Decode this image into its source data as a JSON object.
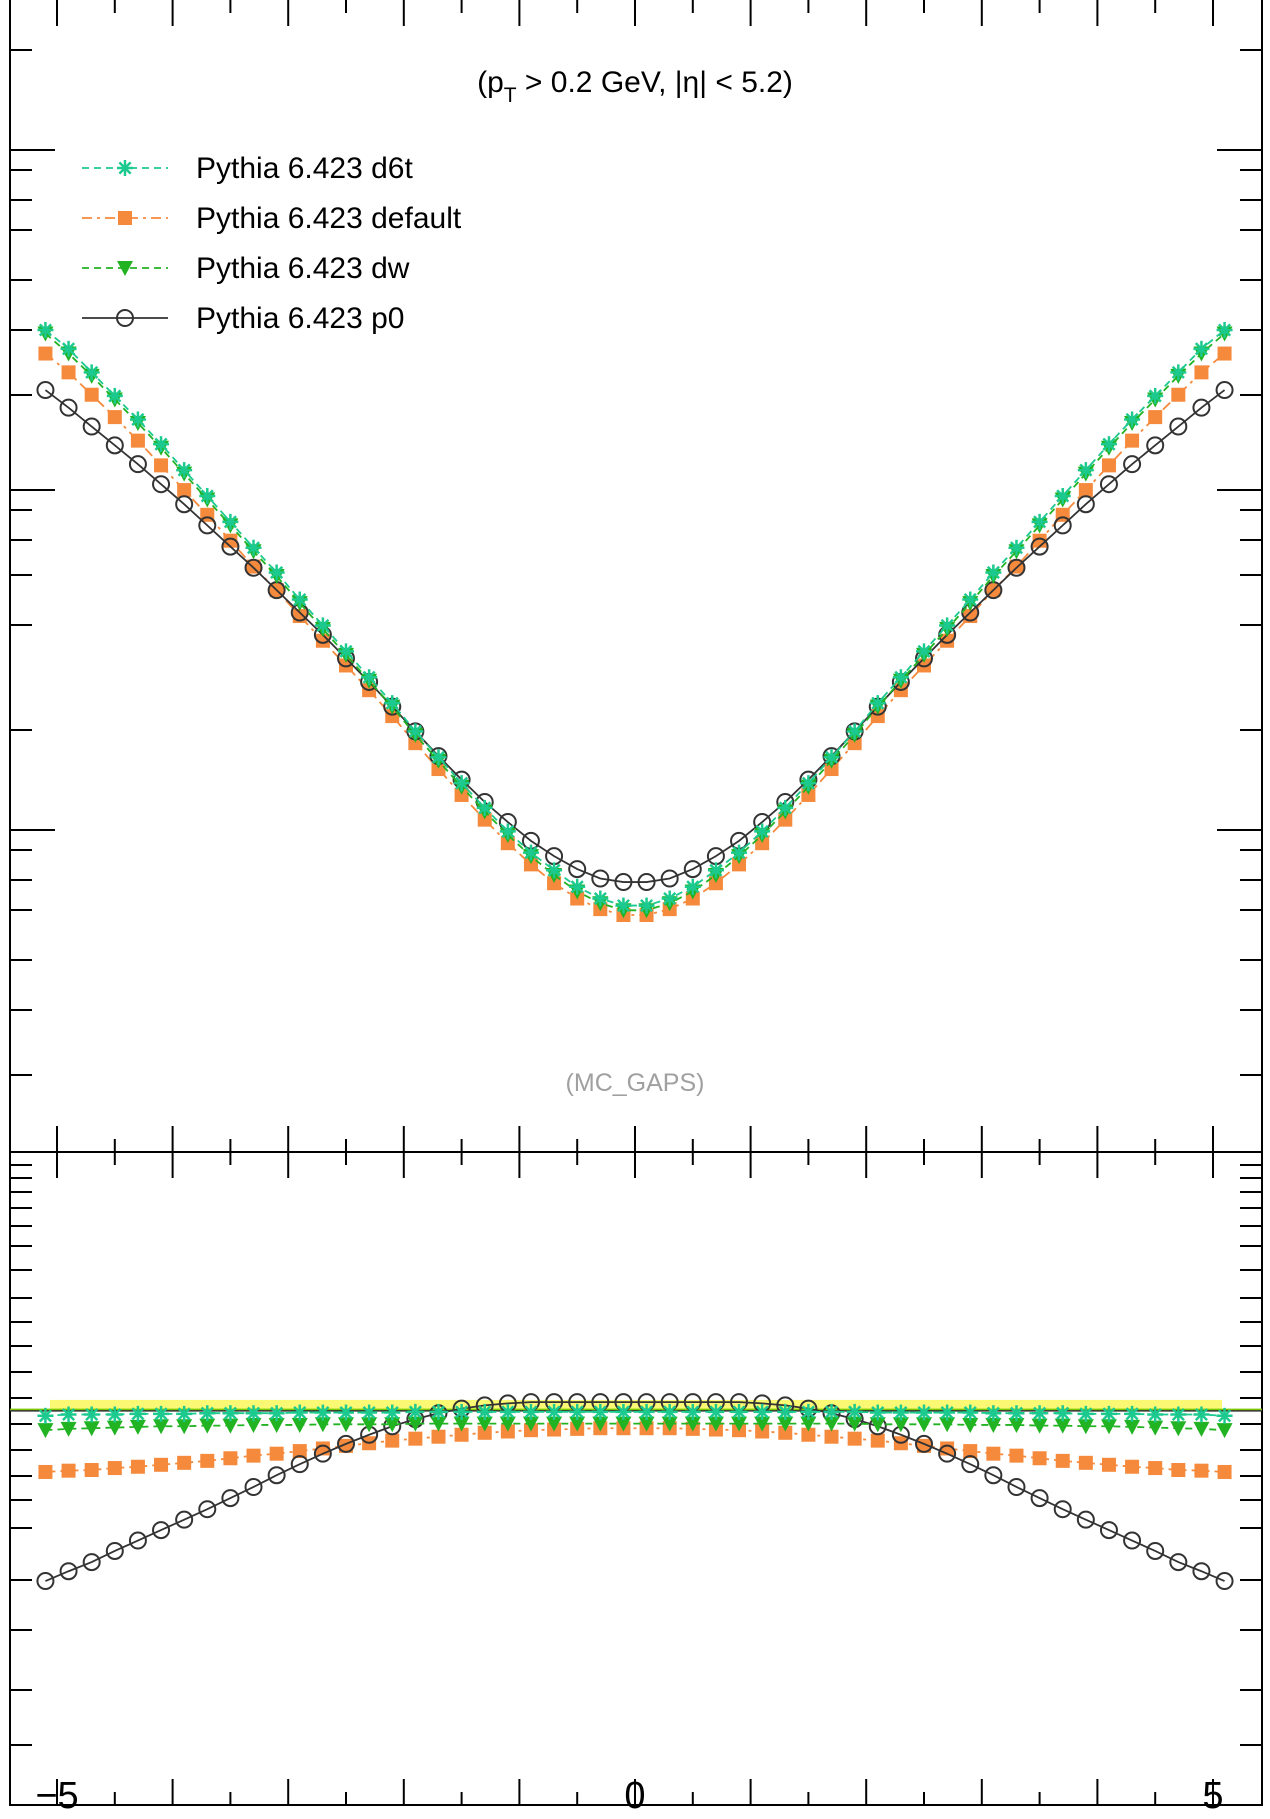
{
  "chart_data": [
    {
      "type": "line",
      "panel": "main",
      "annotation_prefix": "(p",
      "annotation_sub": "T",
      "annotation_suffix": " > 0.2 GeV, |η| < 5.2)",
      "watermark": "(MC_GAPS)",
      "legend_position": "top-left",
      "xlim": [
        -5.0,
        5.0
      ],
      "ylim_relative": [
        0,
        1
      ],
      "x": [
        -5.1,
        -4.9,
        -4.7,
        -4.5,
        -4.3,
        -4.1,
        -3.9,
        -3.7,
        -3.5,
        -3.3,
        -3.1,
        -2.9,
        -2.7,
        -2.5,
        -2.3,
        -2.1,
        -1.9,
        -1.7,
        -1.5,
        -1.3,
        -1.1,
        -0.9,
        -0.7,
        -0.5,
        -0.3,
        -0.1,
        0.1,
        0.3,
        0.5,
        0.7,
        0.9,
        1.1,
        1.3,
        1.5,
        1.7,
        1.9,
        2.1,
        2.3,
        2.5,
        2.7,
        2.9,
        3.1,
        3.3,
        3.5,
        3.7,
        3.9,
        4.1,
        4.3,
        4.5,
        4.7,
        4.9,
        5.1
      ],
      "series": [
        {
          "name": "Pythia 6.423 d6t",
          "color": "#1cc98e",
          "marker": "star",
          "dash": "dashed",
          "values": [
            0.342,
            0.358,
            0.378,
            0.398,
            0.418,
            0.439,
            0.461,
            0.483,
            0.505,
            0.527,
            0.548,
            0.571,
            0.593,
            0.615,
            0.637,
            0.659,
            0.683,
            0.705,
            0.727,
            0.748,
            0.768,
            0.786,
            0.801,
            0.815,
            0.825,
            0.831,
            0.831,
            0.825,
            0.815,
            0.801,
            0.786,
            0.768,
            0.748,
            0.727,
            0.705,
            0.683,
            0.659,
            0.637,
            0.615,
            0.593,
            0.571,
            0.548,
            0.527,
            0.505,
            0.483,
            0.461,
            0.439,
            0.418,
            0.398,
            0.378,
            0.358,
            0.342
          ]
        },
        {
          "name": "Pythia 6.423 default",
          "color": "#f58a3c",
          "marker": "square",
          "dash": "dashdot",
          "values": [
            0.362,
            0.378,
            0.397,
            0.416,
            0.436,
            0.457,
            0.478,
            0.499,
            0.521,
            0.543,
            0.563,
            0.585,
            0.606,
            0.627,
            0.648,
            0.67,
            0.693,
            0.715,
            0.737,
            0.758,
            0.778,
            0.796,
            0.812,
            0.825,
            0.834,
            0.839,
            0.839,
            0.834,
            0.825,
            0.812,
            0.796,
            0.778,
            0.758,
            0.737,
            0.715,
            0.693,
            0.67,
            0.648,
            0.627,
            0.606,
            0.585,
            0.563,
            0.543,
            0.521,
            0.499,
            0.478,
            0.457,
            0.436,
            0.416,
            0.397,
            0.378,
            0.362
          ]
        },
        {
          "name": "Pythia 6.423 dw",
          "color": "#22b322",
          "marker": "triangle-down",
          "dash": "dashed",
          "values": [
            0.345,
            0.362,
            0.381,
            0.401,
            0.421,
            0.442,
            0.464,
            0.486,
            0.508,
            0.53,
            0.551,
            0.574,
            0.596,
            0.618,
            0.64,
            0.662,
            0.686,
            0.708,
            0.73,
            0.751,
            0.771,
            0.789,
            0.805,
            0.819,
            0.829,
            0.835,
            0.835,
            0.829,
            0.819,
            0.805,
            0.789,
            0.771,
            0.751,
            0.73,
            0.708,
            0.686,
            0.662,
            0.64,
            0.618,
            0.596,
            0.574,
            0.551,
            0.53,
            0.508,
            0.486,
            0.464,
            0.442,
            0.421,
            0.401,
            0.381,
            0.362,
            0.345
          ]
        },
        {
          "name": "Pythia 6.423 p0",
          "color": "#333333",
          "marker": "circle-open",
          "dash": "solid",
          "values": [
            0.393,
            0.408,
            0.424,
            0.44,
            0.456,
            0.473,
            0.49,
            0.508,
            0.526,
            0.544,
            0.563,
            0.582,
            0.601,
            0.621,
            0.641,
            0.662,
            0.683,
            0.704,
            0.724,
            0.743,
            0.76,
            0.776,
            0.789,
            0.8,
            0.808,
            0.811,
            0.811,
            0.808,
            0.8,
            0.789,
            0.776,
            0.76,
            0.743,
            0.724,
            0.704,
            0.683,
            0.662,
            0.641,
            0.621,
            0.601,
            0.582,
            0.563,
            0.544,
            0.526,
            0.508,
            0.49,
            0.473,
            0.456,
            0.44,
            0.424,
            0.408,
            0.393
          ]
        }
      ]
    },
    {
      "type": "line",
      "panel": "ratio",
      "xlim": [
        -5.0,
        5.0
      ],
      "x_tick_labels": [
        {
          "x": -5,
          "label": "−5"
        },
        {
          "x": 0,
          "label": "0"
        },
        {
          "x": 5,
          "label": "5"
        }
      ],
      "reference_line": {
        "y": 1.0,
        "color": "#7ec800"
      },
      "ylim_relative": [
        0,
        1
      ],
      "reference_y_relative": 0.605,
      "series": [
        {
          "name": "Pythia 6.423 d6t",
          "values_rel": [
            0.596,
            0.598,
            0.598,
            0.598,
            0.599,
            0.599,
            0.599,
            0.6,
            0.6,
            0.6,
            0.6,
            0.601,
            0.601,
            0.601,
            0.601,
            0.601,
            0.602,
            0.602,
            0.602,
            0.602,
            0.602,
            0.602,
            0.602,
            0.602,
            0.602,
            0.602,
            0.602,
            0.602,
            0.602,
            0.602,
            0.602,
            0.602,
            0.602,
            0.602,
            0.602,
            0.602,
            0.601,
            0.601,
            0.601,
            0.601,
            0.601,
            0.6,
            0.6,
            0.6,
            0.6,
            0.599,
            0.599,
            0.599,
            0.598,
            0.598,
            0.598,
            0.596
          ]
        },
        {
          "name": "Pythia 6.423 default",
          "values_rel": [
            0.51,
            0.512,
            0.513,
            0.516,
            0.518,
            0.521,
            0.524,
            0.527,
            0.531,
            0.535,
            0.538,
            0.542,
            0.546,
            0.55,
            0.554,
            0.558,
            0.561,
            0.564,
            0.567,
            0.57,
            0.572,
            0.574,
            0.575,
            0.576,
            0.577,
            0.577,
            0.577,
            0.577,
            0.576,
            0.575,
            0.574,
            0.572,
            0.57,
            0.567,
            0.564,
            0.561,
            0.558,
            0.554,
            0.55,
            0.546,
            0.542,
            0.538,
            0.535,
            0.531,
            0.527,
            0.524,
            0.521,
            0.518,
            0.516,
            0.513,
            0.512,
            0.51
          ]
        },
        {
          "name": "Pythia 6.423 dw",
          "values_rel": [
            0.574,
            0.576,
            0.577,
            0.578,
            0.579,
            0.58,
            0.58,
            0.581,
            0.581,
            0.582,
            0.582,
            0.582,
            0.583,
            0.583,
            0.583,
            0.583,
            0.584,
            0.584,
            0.584,
            0.584,
            0.584,
            0.584,
            0.584,
            0.584,
            0.584,
            0.584,
            0.584,
            0.584,
            0.584,
            0.584,
            0.584,
            0.584,
            0.584,
            0.584,
            0.584,
            0.584,
            0.583,
            0.583,
            0.583,
            0.583,
            0.582,
            0.582,
            0.582,
            0.581,
            0.581,
            0.58,
            0.58,
            0.579,
            0.578,
            0.577,
            0.576,
            0.574
          ]
        },
        {
          "name": "Pythia 6.423 p0",
          "values_rel": [
            0.343,
            0.358,
            0.372,
            0.389,
            0.405,
            0.421,
            0.437,
            0.453,
            0.47,
            0.487,
            0.505,
            0.522,
            0.538,
            0.553,
            0.567,
            0.58,
            0.591,
            0.6,
            0.607,
            0.612,
            0.615,
            0.617,
            0.617,
            0.617,
            0.617,
            0.617,
            0.617,
            0.617,
            0.617,
            0.617,
            0.617,
            0.615,
            0.612,
            0.607,
            0.6,
            0.591,
            0.58,
            0.567,
            0.553,
            0.538,
            0.522,
            0.505,
            0.487,
            0.47,
            0.453,
            0.437,
            0.421,
            0.405,
            0.389,
            0.372,
            0.358,
            0.343
          ]
        }
      ]
    }
  ]
}
